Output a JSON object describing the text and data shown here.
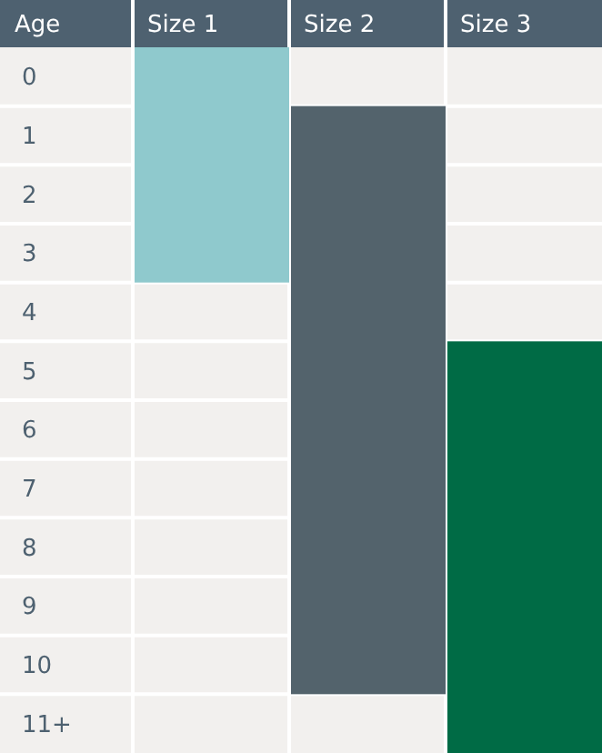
{
  "chart_data": {
    "type": "bar",
    "ylabel": "Age",
    "categories": [
      "Size 1",
      "Size 2",
      "Size 3"
    ],
    "values": [
      4,
      10,
      7
    ],
    "base": [
      -0.5,
      0.5,
      4.5
    ],
    "colors": [
      "#8fc9cd",
      "#53636c",
      "#006b45"
    ],
    "ylim": [
      11.5,
      -0.5
    ],
    "yticks": [
      0,
      1,
      2,
      3,
      4,
      5,
      6,
      7,
      8,
      9,
      10,
      {
        "value": 11,
        "label": "11+"
      }
    ],
    "grid": true
  }
}
